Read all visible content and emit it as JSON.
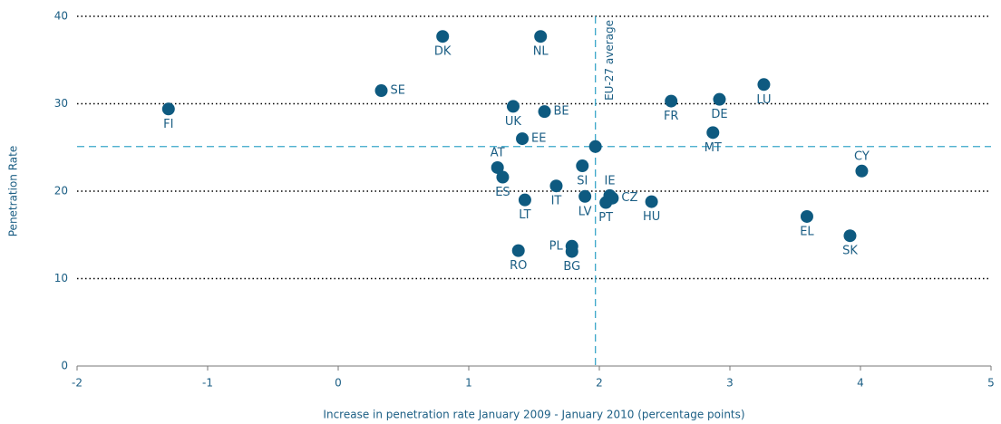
{
  "chart_data": {
    "type": "scatter",
    "x_label": "Increase in penetration rate January 2009 - January 2010 (percentage points)",
    "y_label": "Penetration Rate",
    "categories": [
      "FI",
      "SE",
      "DK",
      "NL",
      "UK",
      "BE",
      "EE",
      "AT",
      "ES",
      "LT",
      "IT",
      "SI",
      "LV",
      "IE",
      "CZ",
      "PT",
      "HU",
      "RO",
      "PL",
      "BG",
      "FR",
      "DE",
      "LU",
      "MT",
      "CY",
      "EL",
      "SK"
    ],
    "x": [
      -1.3,
      0.33,
      0.8,
      1.55,
      1.34,
      1.58,
      1.41,
      1.22,
      1.26,
      1.43,
      1.67,
      1.87,
      1.89,
      2.08,
      2.1,
      2.05,
      2.4,
      1.38,
      1.79,
      1.79,
      2.55,
      2.92,
      3.26,
      2.87,
      4.01,
      3.59,
      3.92
    ],
    "values": [
      29.4,
      31.5,
      37.7,
      37.7,
      29.7,
      29.1,
      26.0,
      22.7,
      21.6,
      19.0,
      20.6,
      22.9,
      19.4,
      19.5,
      19.2,
      18.7,
      18.8,
      13.2,
      13.7,
      13.1,
      30.3,
      30.5,
      32.2,
      26.7,
      22.3,
      17.1,
      14.9
    ],
    "color": "#0e5a80",
    "average_label": "EU-27 average",
    "average_x": 1.97,
    "average_y": 25.1,
    "average_color": "#3aa7c9",
    "xlim": [
      -2,
      5
    ],
    "xticks": [
      -2,
      -1,
      0,
      1,
      2,
      3,
      4,
      5
    ],
    "ylim": [
      0,
      40
    ],
    "yticks": [
      0,
      10,
      20,
      30,
      40
    ],
    "grid": true
  }
}
